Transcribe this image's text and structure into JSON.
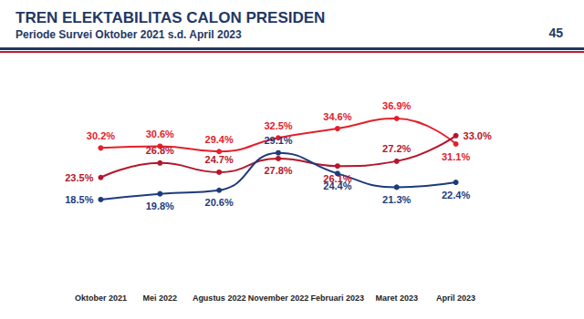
{
  "chart_data": {
    "type": "line",
    "title": "TREN ELEKTABILITAS CALON PRESIDEN",
    "subtitle": "Periode Survei Oktober 2021 s.d. April 2023",
    "annotations": [
      "45"
    ],
    "categories": [
      "Oktober 2021",
      "Mei 2022",
      "Agustus 2022",
      "November 2022",
      "Februari 2023",
      "Maret 2023",
      "April 2023"
    ],
    "series": [
      {
        "color": "#e3202b",
        "values": [
          30.2,
          30.6,
          29.4,
          32.5,
          34.6,
          36.9,
          31.1
        ],
        "value_labels": [
          "30.2%",
          "30.6%",
          "29.4%",
          "32.5%",
          "34.6%",
          "36.9%",
          "31.1%"
        ]
      },
      {
        "color": "#b5162b",
        "values": [
          23.5,
          26.8,
          24.7,
          27.8,
          26.1,
          27.2,
          33.0
        ],
        "value_labels": [
          "23.5%",
          "26.8%",
          "24.7%",
          "27.8%",
          "26.1%",
          "27.2%",
          "33.0%"
        ]
      },
      {
        "color": "#1d3b7c",
        "values": [
          18.5,
          19.8,
          20.6,
          29.1,
          24.4,
          21.3,
          22.4
        ],
        "value_labels": [
          "18.5%",
          "19.8%",
          "20.6%",
          "29.1%",
          "24.4%",
          "21.3%",
          "22.4%"
        ]
      }
    ],
    "ylim": [
      10,
      40
    ],
    "grid": false,
    "data_labels": true,
    "tick_labels": "x",
    "marker": "circle",
    "line_style": "solid"
  }
}
